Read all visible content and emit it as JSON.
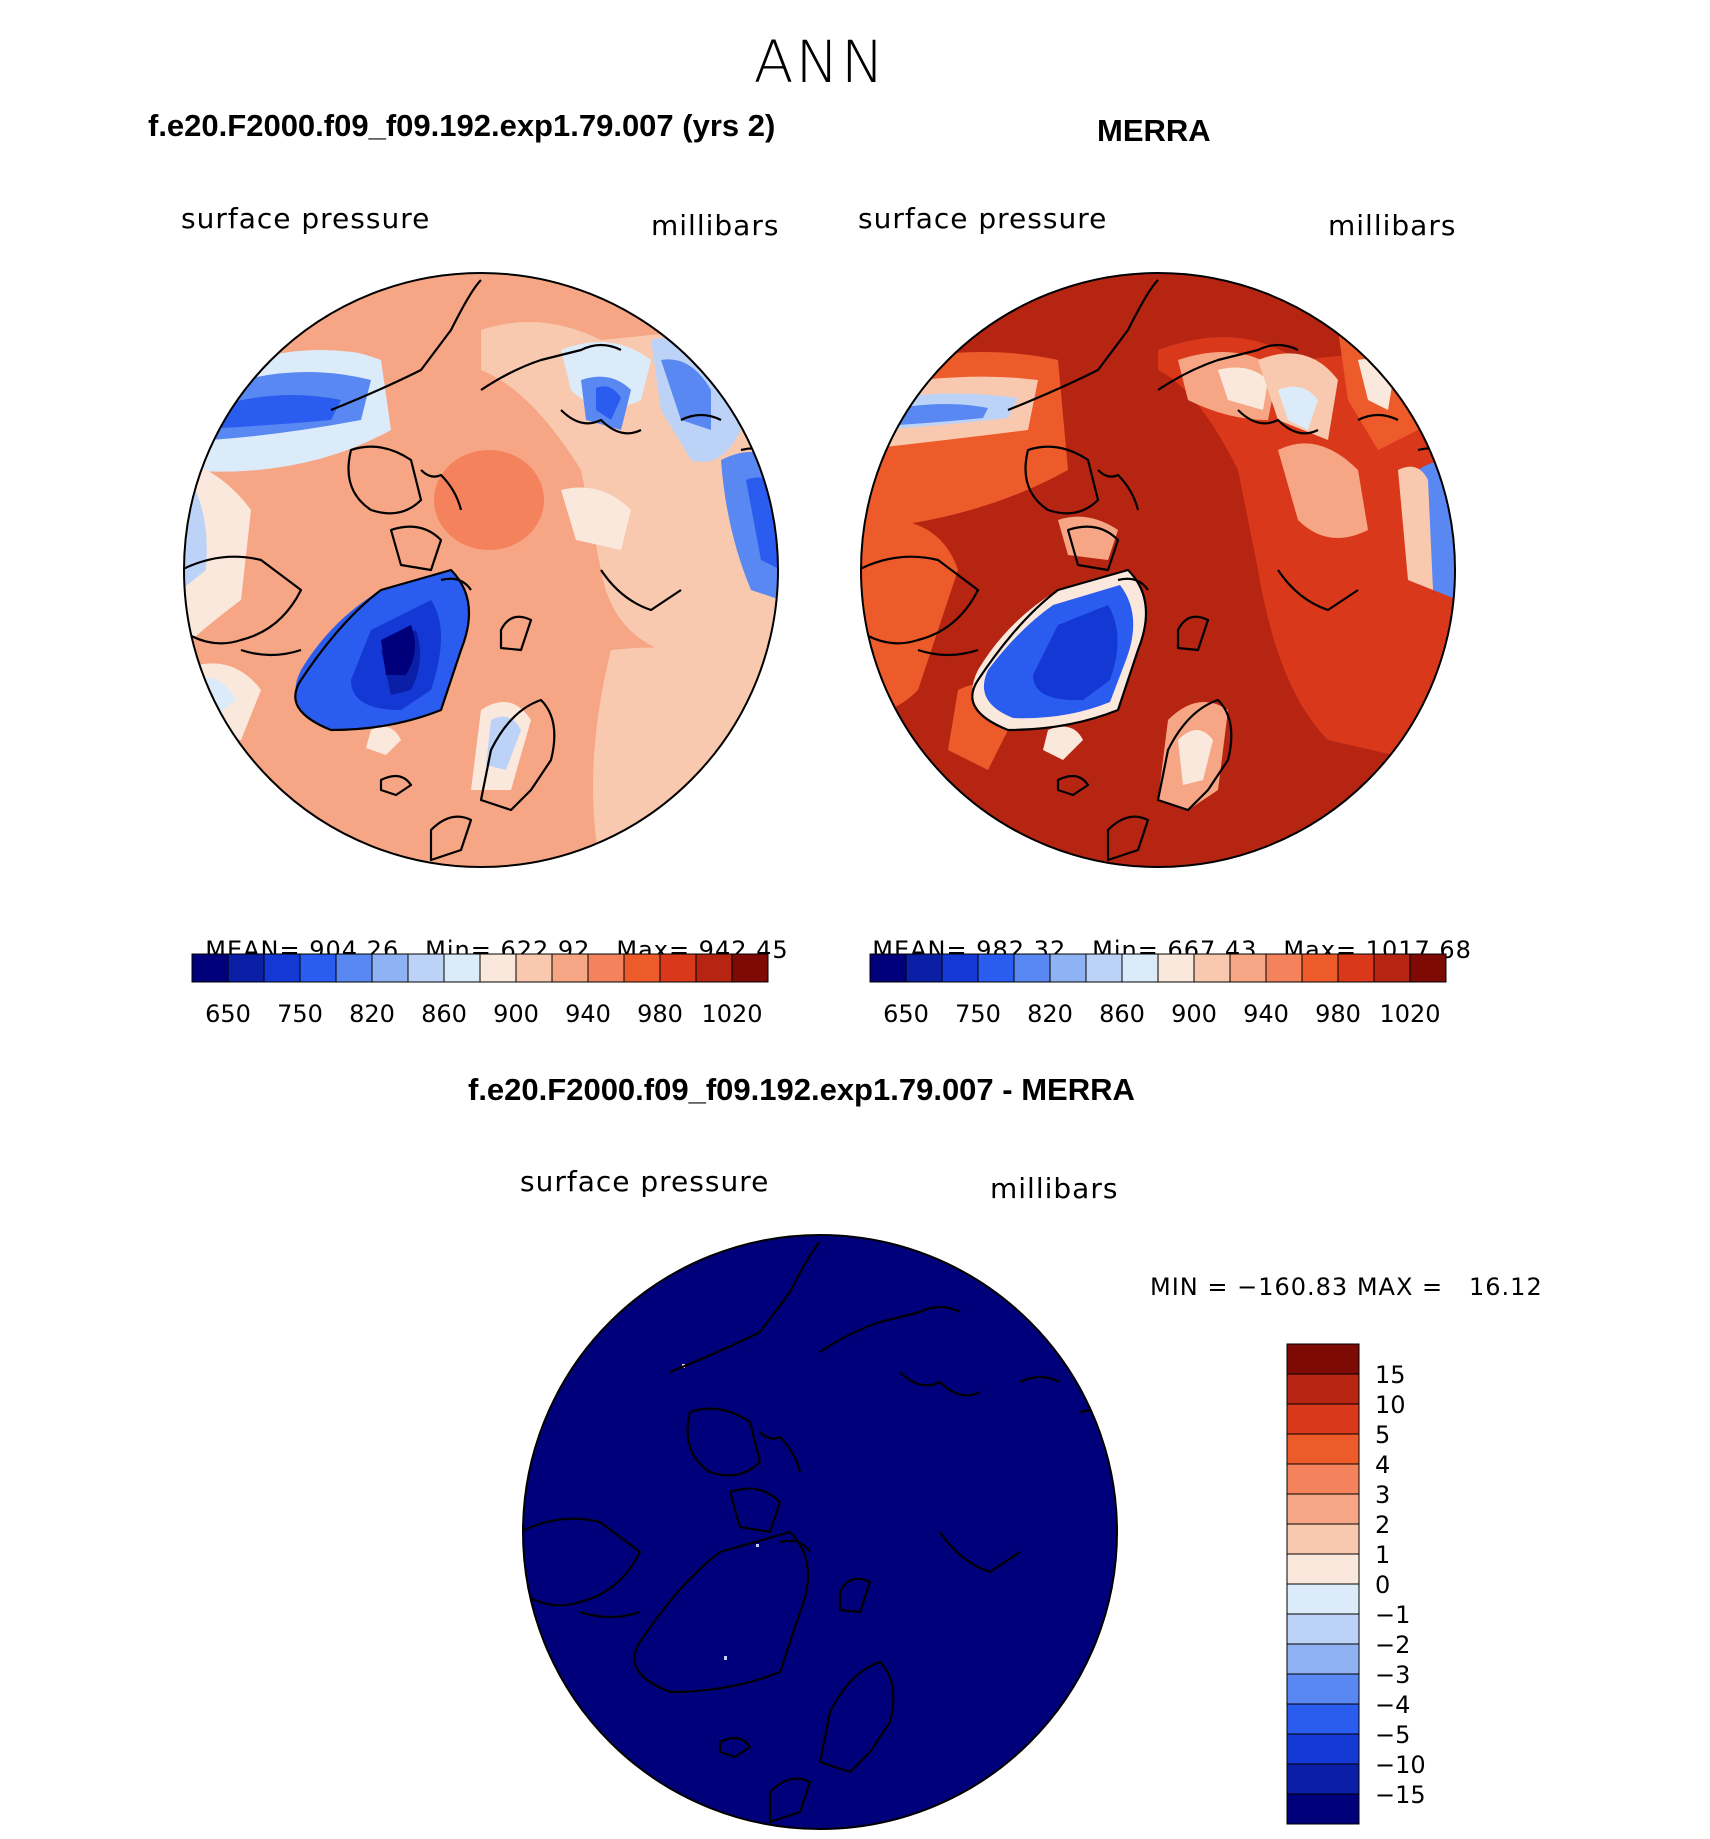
{
  "season": "ANN",
  "palette": [
    "#00007a",
    "#0a1fa6",
    "#1438d4",
    "#2a5cf0",
    "#5a88f2",
    "#8fb2f5",
    "#bcd3f7",
    "#dcebfa",
    "#fbe8dc",
    "#f9c9af",
    "#f6a684",
    "#f4825c",
    "#ee5b2a",
    "#d9381a",
    "#b52512",
    "#7e0a05"
  ],
  "panels": {
    "model": {
      "title": "f.e20.F2000.f09_f09.192.exp1.79.007 (yrs 2)",
      "variable": "surface pressure",
      "units": "millibars",
      "mean": "MEAN= 904.26",
      "min": "Min= 622.92",
      "max": "Max= 942.45",
      "colorbar_labels": [
        "650",
        "750",
        "820",
        "860",
        "900",
        "940",
        "980",
        "1020"
      ]
    },
    "obs": {
      "title": "MERRA",
      "variable": "surface pressure",
      "units": "millibars",
      "mean": "MEAN= 982.32",
      "min": "Min= 667.43",
      "max": "Max= 1017.68",
      "colorbar_labels": [
        "650",
        "750",
        "820",
        "860",
        "900",
        "940",
        "980",
        "1020"
      ]
    },
    "diff": {
      "title": "f.e20.F2000.f09_f09.192.exp1.79.007 - MERRA",
      "variable": "surface pressure",
      "units": "millibars",
      "minmax": "MIN = −160.83 MAX =   16.12",
      "colorbar_labels": [
        "15",
        "10",
        "5",
        "4",
        "3",
        "2",
        "1",
        "0",
        "−1",
        "−2",
        "−3",
        "−4",
        "−5",
        "−10",
        "−15"
      ],
      "colorbar_colors": [
        "#7e0a05",
        "#b52512",
        "#d9381a",
        "#ee5b2a",
        "#f4825c",
        "#f6a684",
        "#f9c9af",
        "#fbe8dc",
        "#dcebfa",
        "#bcd3f7",
        "#8fb2f5",
        "#5a88f2",
        "#2a5cf0",
        "#1438d4",
        "#0a1fa6",
        "#00007a"
      ]
    }
  }
}
